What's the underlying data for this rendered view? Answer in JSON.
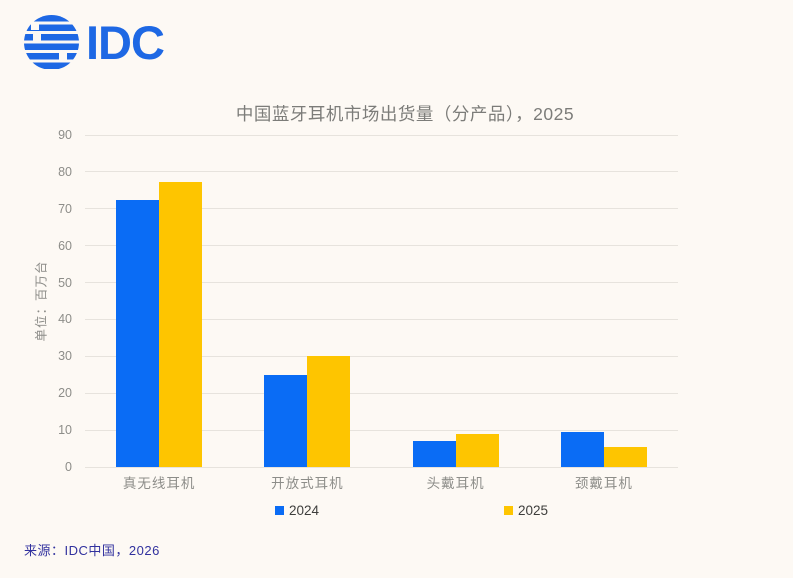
{
  "page": {
    "background_color": "#fdf9f4",
    "gridline_color": "#e7e3dd"
  },
  "logo": {
    "text": "IDC",
    "color": "#1e68e4"
  },
  "chart_data": {
    "type": "bar",
    "title": "中国蓝牙耳机市场出货量（分产品），2025",
    "ylabel": "单位：百万台",
    "xlabel": "",
    "categories": [
      "真无线耳机",
      "开放式耳机",
      "头戴耳机",
      "颈戴耳机"
    ],
    "series": [
      {
        "name": "2024",
        "color": "#0a6cf5",
        "values": [
          72.3,
          25,
          7,
          9.4
        ]
      },
      {
        "name": "2025",
        "color": "#fec500",
        "values": [
          77.2,
          30,
          8.9,
          5.4
        ]
      }
    ],
    "ylim": [
      0,
      90
    ],
    "ytick_step": 10,
    "grid": true,
    "legend_position": "bottom"
  },
  "source": {
    "label": "来源：IDC中国，2026"
  }
}
